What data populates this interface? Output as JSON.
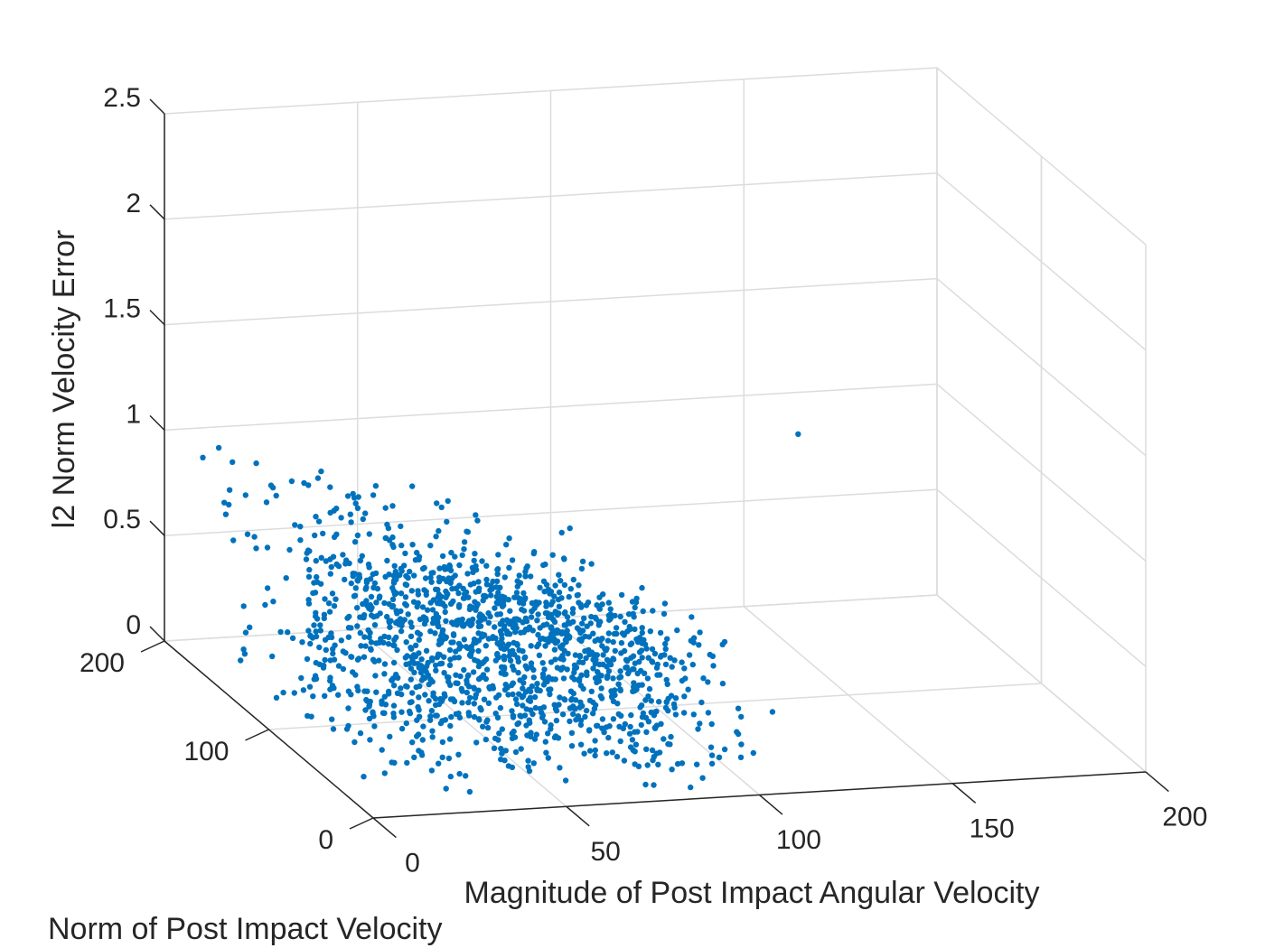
{
  "chart_data": {
    "type": "scatter",
    "projection": "3d",
    "xlabel": "Magnitude of Post Impact Angular Velocity",
    "ylabel": "Norm of Post Impact Velocity",
    "zlabel": "l2 Norm Velocity Error",
    "xlim": [
      0,
      200
    ],
    "ylim": [
      0,
      200
    ],
    "zlim": [
      0,
      2.5
    ],
    "x_ticks": [
      "0",
      "50",
      "100",
      "150",
      "200"
    ],
    "y_ticks": [
      "0",
      "100",
      "200"
    ],
    "z_ticks": [
      "0",
      "0.5",
      "1",
      "1.5",
      "2",
      "2.5"
    ],
    "grid": true,
    "marker_color": "#0072BD",
    "series": [
      {
        "point_count": 1500,
        "distribution": "dense cluster in the low angular-velocity region; error mostly 0 to 1",
        "points": [
          {
            "x": 110,
            "y": 0,
            "z": 1.7
          },
          {
            "x": 52,
            "y": 4,
            "z": 1.3
          },
          {
            "x": 51,
            "y": 6,
            "z": 1.15
          },
          {
            "x": 96,
            "y": 185,
            "z": 0.02
          },
          {
            "x": 46,
            "y": 5,
            "z": 0.9
          },
          {
            "x": 70,
            "y": 10,
            "z": 0.85
          },
          {
            "x": 86,
            "y": 30,
            "z": 0.32
          },
          {
            "x": 95,
            "y": 20,
            "z": 0.1
          },
          {
            "x": 98,
            "y": 10,
            "z": 0.2
          }
        ]
      }
    ]
  }
}
